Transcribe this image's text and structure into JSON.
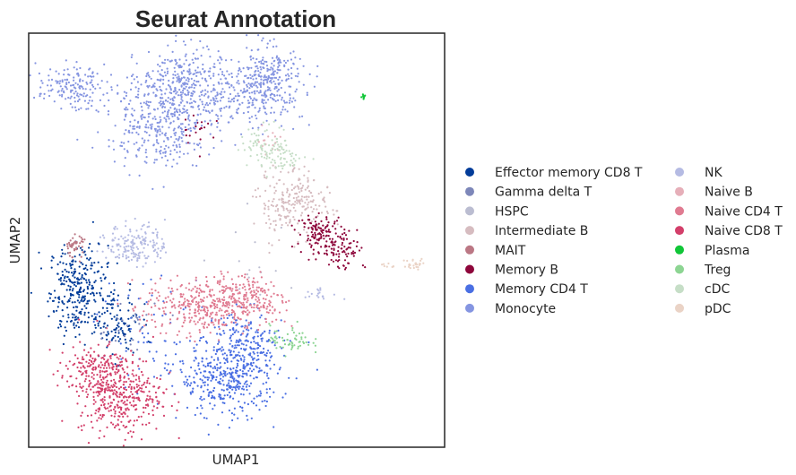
{
  "chart_data": {
    "type": "scatter",
    "title": "Seurat Annotation",
    "xlabel": "UMAP1",
    "ylabel": "UMAP2",
    "xlim": [
      0,
      100
    ],
    "ylim": [
      0,
      100
    ],
    "xticks": [],
    "yticks": [],
    "grid": false,
    "legend_placement": "right",
    "legend_columns": 2,
    "point_size": "small",
    "series": [
      {
        "name": "Effector memory CD8 T",
        "color": "#023c99",
        "clusters": [
          {
            "x": 12,
            "y": 38,
            "sx": 3.5,
            "sy": 5.5,
            "n": 300
          },
          {
            "x": 21,
            "y": 30,
            "sx": 3,
            "sy": 4,
            "n": 110
          }
        ]
      },
      {
        "name": "Gamma delta T",
        "color": "#7d87b9",
        "clusters": [
          {
            "x": 23,
            "y": 28,
            "sx": 4,
            "sy": 4,
            "n": 25
          }
        ]
      },
      {
        "name": "HSPC",
        "color": "#bbbdd1",
        "clusters": [
          {
            "x": 55,
            "y": 44,
            "sx": 6,
            "sy": 5,
            "n": 15
          }
        ]
      },
      {
        "name": "Intermediate B",
        "color": "#d6bcc0",
        "clusters": [
          {
            "x": 62,
            "y": 59,
            "sx": 3.5,
            "sy": 4,
            "n": 170
          },
          {
            "x": 68,
            "y": 58,
            "sx": 3,
            "sy": 3.5,
            "n": 60
          }
        ]
      },
      {
        "name": "MAIT",
        "color": "#bb7784",
        "clusters": [
          {
            "x": 11,
            "y": 48.5,
            "sx": 1.2,
            "sy": 1.4,
            "n": 45
          }
        ]
      },
      {
        "name": "Memory B",
        "color": "#8e063b",
        "clusters": [
          {
            "x": 70,
            "y": 52,
            "sx": 2.8,
            "sy": 2,
            "n": 110
          },
          {
            "x": 75,
            "y": 48,
            "sx": 3,
            "sy": 2.5,
            "n": 90
          },
          {
            "x": 41,
            "y": 77,
            "sx": 2,
            "sy": 2,
            "n": 20
          }
        ]
      },
      {
        "name": "Memory CD4 T",
        "color": "#4a6fe3",
        "clusters": [
          {
            "x": 48,
            "y": 17,
            "sx": 6,
            "sy": 5,
            "n": 420
          },
          {
            "x": 53,
            "y": 25,
            "sx": 4,
            "sy": 4,
            "n": 140
          },
          {
            "x": 30,
            "y": 28,
            "sx": 7,
            "sy": 8,
            "n": 60
          }
        ]
      },
      {
        "name": "Monocyte",
        "color": "#8595e1",
        "clusters": [
          {
            "x": 32,
            "y": 80,
            "sx": 6.5,
            "sy": 6,
            "n": 450
          },
          {
            "x": 38,
            "y": 89,
            "sx": 4,
            "sy": 4,
            "n": 200
          },
          {
            "x": 57,
            "y": 88,
            "sx": 4.5,
            "sy": 4.5,
            "n": 350
          },
          {
            "x": 10,
            "y": 87,
            "sx": 4,
            "sy": 2.5,
            "n": 150
          },
          {
            "x": 48,
            "y": 85,
            "sx": 3,
            "sy": 3,
            "n": 80
          }
        ]
      },
      {
        "name": "NK",
        "color": "#b5bbe3",
        "clusters": [
          {
            "x": 26,
            "y": 49,
            "sx": 3.5,
            "sy": 2.5,
            "n": 170
          },
          {
            "x": 70,
            "y": 37,
            "sx": 2.5,
            "sy": 0.7,
            "n": 18
          }
        ]
      },
      {
        "name": "Naive B",
        "color": "#e6afb9",
        "clusters": [
          {
            "x": 58,
            "y": 74,
            "sx": 2,
            "sy": 2,
            "n": 15
          }
        ]
      },
      {
        "name": "Naive CD4 T",
        "color": "#e07b91",
        "clusters": [
          {
            "x": 42,
            "y": 34,
            "sx": 7,
            "sy": 3.5,
            "n": 380
          },
          {
            "x": 54,
            "y": 36,
            "sx": 4,
            "sy": 3,
            "n": 140
          }
        ]
      },
      {
        "name": "Naive CD8 T",
        "color": "#d33f6a",
        "clusters": [
          {
            "x": 22,
            "y": 13,
            "sx": 5,
            "sy": 5,
            "n": 380
          },
          {
            "x": 15,
            "y": 18,
            "sx": 4,
            "sy": 3.5,
            "n": 150
          }
        ]
      },
      {
        "name": "Plasma",
        "color": "#11c638",
        "clusters": [
          {
            "x": 80.5,
            "y": 84.5,
            "sx": 0.3,
            "sy": 0.4,
            "n": 10
          }
        ]
      },
      {
        "name": "Treg",
        "color": "#8dd593",
        "clusters": [
          {
            "x": 63,
            "y": 26,
            "sx": 2.5,
            "sy": 1.8,
            "n": 60
          }
        ]
      },
      {
        "name": "cDC",
        "color": "#c6dec7",
        "clusters": [
          {
            "x": 57,
            "y": 73,
            "sx": 3,
            "sy": 2.5,
            "n": 80
          },
          {
            "x": 62,
            "y": 70,
            "sx": 2.5,
            "sy": 1.5,
            "n": 40
          }
        ]
      },
      {
        "name": "pDC",
        "color": "#ead3c6",
        "clusters": [
          {
            "x": 93,
            "y": 44,
            "sx": 1.4,
            "sy": 0.8,
            "n": 25
          },
          {
            "x": 86,
            "y": 44,
            "sx": 1,
            "sy": 0.5,
            "n": 8
          }
        ]
      }
    ]
  }
}
